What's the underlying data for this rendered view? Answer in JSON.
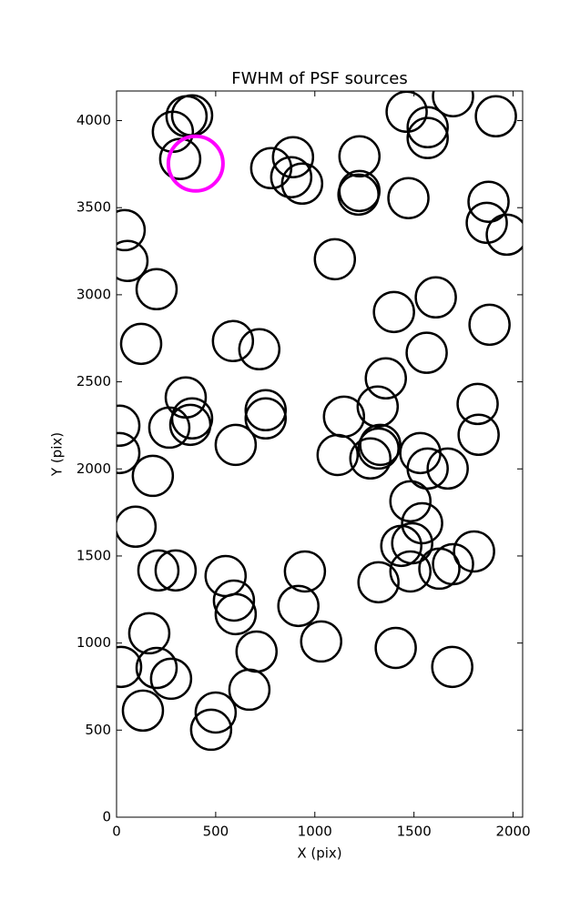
{
  "chart_data": {
    "type": "scatter",
    "title": "FWHM of PSF sources",
    "x_label": "X (pix)",
    "y_label": "Y (pix)",
    "xlim": [
      0,
      2048
    ],
    "ylim": [
      0,
      4170
    ],
    "xticks": [
      0,
      500,
      1000,
      1500,
      2000
    ],
    "yticks": [
      0,
      500,
      1000,
      1500,
      2000,
      2500,
      3000,
      3500,
      4000
    ],
    "series": [
      {
        "color": "#000000",
        "x": [
          353,
          381,
          284,
          321,
          1463,
          1569,
          1569,
          1697,
          1913,
          1225,
          1225,
          1220,
          1472,
          890,
          780,
          881,
          936,
          1876,
          1867,
          1968,
          41,
          55,
          202,
          1101,
          1610,
          1399,
          1881,
          124,
          587,
          720,
          1564,
          1358,
          349,
          1317,
          1821,
          1147,
          752,
          752,
          381,
          372,
          266,
          14,
          14,
          601,
          1330,
          1321,
          1826,
          1115,
          1280,
          1532,
          1569,
          1670,
          183,
          1482,
          1541,
          96,
          1436,
          1491,
          1803,
          1697,
          1628,
          1482,
          211,
          298,
          550,
          950,
          592,
          601,
          1321,
          917,
          165,
          1032,
          1408,
          706,
          202,
          275,
          23,
          1693,
          670,
          500,
          477,
          133
        ],
        "values": [
          4025,
          4030,
          3936,
          3780,
          4051,
          3962,
          3900,
          4140,
          4025,
          3795,
          3596,
          3575,
          3555,
          3790,
          3727,
          3675,
          3638,
          3534,
          3413,
          3345,
          3371,
          3194,
          3032,
          3204,
          2985,
          2901,
          2828,
          2718,
          2734,
          2687,
          2667,
          2520,
          2410,
          2358,
          2373,
          2300,
          2337,
          2290,
          2290,
          2253,
          2237,
          2248,
          2091,
          2138,
          2138,
          2117,
          2196,
          2080,
          2060,
          2091,
          2002,
          2002,
          1960,
          1814,
          1688,
          1668,
          1558,
          1573,
          1526,
          1453,
          1427,
          1411,
          1417,
          1417,
          1385,
          1411,
          1244,
          1166,
          1349,
          1213,
          1056,
          1009,
          972,
          951,
          857,
          795,
          863,
          863,
          732,
          601,
          502,
          612
        ]
      },
      {
        "color": "#ff00ff",
        "x": [
          399
        ],
        "values": [
          3753
        ]
      }
    ]
  }
}
